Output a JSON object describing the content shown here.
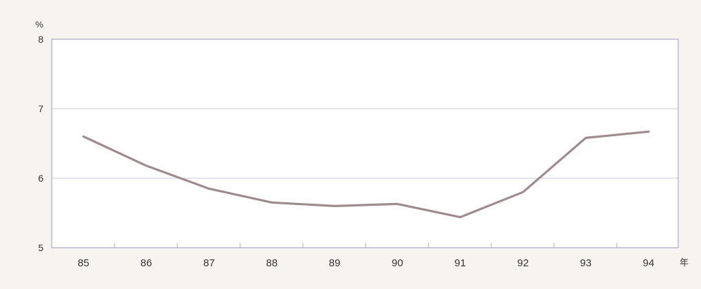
{
  "chart_data": {
    "type": "line",
    "title": "",
    "xlabel": "年",
    "ylabel": "%",
    "x": [
      "85",
      "86",
      "87",
      "88",
      "89",
      "90",
      "91",
      "92",
      "93",
      "94"
    ],
    "series": [
      {
        "values": [
          6.6,
          6.18,
          5.85,
          5.65,
          5.6,
          5.63,
          5.44,
          5.8,
          6.58,
          6.67
        ]
      }
    ],
    "ylim": [
      5,
      8
    ],
    "yticks": [
      "5",
      "6",
      "7",
      "8"
    ],
    "grid": "horizontal",
    "legend": "none"
  },
  "colors": {
    "background": "#f7f4ef",
    "plot_background": "#ffffff",
    "frame": "#a9a9c6",
    "grid": "#c8c8dc",
    "line": "#9e8b8e"
  }
}
